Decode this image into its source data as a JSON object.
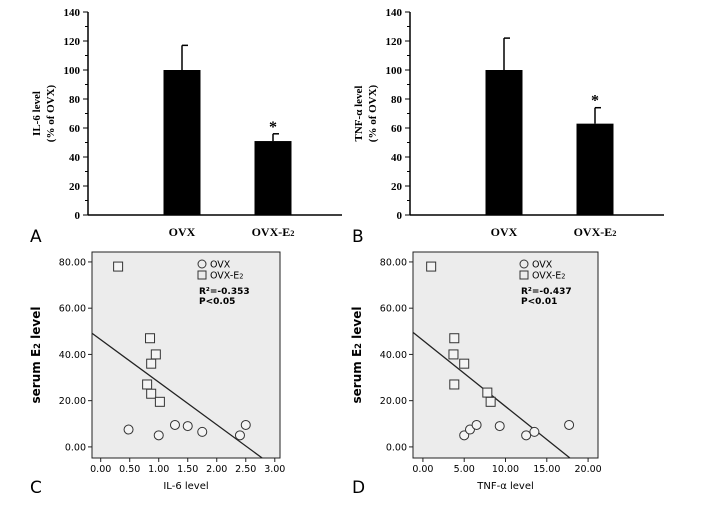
{
  "chart_data": [
    {
      "panel": "A",
      "type": "bar",
      "ylabel": [
        "IL-6 level",
        "(% of OVX)"
      ],
      "categories": [
        "OVX",
        "OVX-E2"
      ],
      "values": [
        100,
        51
      ],
      "errors": [
        17,
        5
      ],
      "annotations": [
        "",
        "*"
      ],
      "ylim": [
        0,
        140
      ],
      "yticks": [
        0,
        20,
        40,
        60,
        80,
        100,
        120,
        140
      ],
      "bar_color": "#000000"
    },
    {
      "panel": "B",
      "type": "bar",
      "ylabel": [
        "TNF-α level",
        "(% of OVX)"
      ],
      "categories": [
        "OVX",
        "OVX-E2"
      ],
      "values": [
        100,
        63
      ],
      "errors": [
        22,
        11
      ],
      "annotations": [
        "",
        "*"
      ],
      "ylim": [
        0,
        140
      ],
      "yticks": [
        0,
        20,
        40,
        60,
        80,
        100,
        120,
        140
      ],
      "bar_color": "#000000"
    },
    {
      "panel": "C",
      "type": "scatter",
      "xlabel": "IL-6 level",
      "ylabel": "serum E2 level",
      "xlim": [
        -0.15,
        3.09
      ],
      "ylim": [
        -4.8,
        84.3
      ],
      "xticks": [
        "0.00",
        "0.50",
        "1.00",
        "1.50",
        "2.00",
        "2.50",
        "3.00"
      ],
      "yticks": [
        "0.00",
        "20.00",
        "40.00",
        "60.00",
        "80.00"
      ],
      "series": [
        {
          "name": "OVX",
          "marker": "circle",
          "points": [
            [
              0.48,
              7.5
            ],
            [
              1.0,
              5
            ],
            [
              1.28,
              9.5
            ],
            [
              1.5,
              9
            ],
            [
              1.75,
              6.5
            ],
            [
              2.4,
              5
            ],
            [
              2.5,
              9.5
            ]
          ]
        },
        {
          "name": "OVX-E2",
          "marker": "square",
          "points": [
            [
              0.3,
              78
            ],
            [
              0.85,
              47
            ],
            [
              0.95,
              40
            ],
            [
              0.87,
              36
            ],
            [
              0.8,
              27
            ],
            [
              0.87,
              23
            ],
            [
              1.02,
              19.5
            ]
          ]
        }
      ],
      "fit_line": {
        "intercept": 46.4,
        "slope": -18.4
      },
      "stats": [
        "R²=-0.353",
        "P<0.05"
      ],
      "legend": "top-right",
      "background": "#ececec"
    },
    {
      "panel": "D",
      "type": "scatter",
      "xlabel": "TNF-α level",
      "ylabel": "serum E2 level",
      "xlim": [
        -1.2,
        21.2
      ],
      "ylim": [
        -4.8,
        84.3
      ],
      "xticks": [
        "0.00",
        "5.00",
        "10.00",
        "15.00",
        "20.00"
      ],
      "yticks": [
        "0.00",
        "20.00",
        "40.00",
        "60.00",
        "80.00"
      ],
      "series": [
        {
          "name": "OVX",
          "marker": "circle",
          "points": [
            [
              5,
              5
            ],
            [
              5.7,
              7.5
            ],
            [
              6.5,
              9.5
            ],
            [
              9.3,
              9
            ],
            [
              12.5,
              5
            ],
            [
              13.5,
              6.5
            ],
            [
              17.7,
              9.5
            ]
          ]
        },
        {
          "name": "OVX-E2",
          "marker": "square",
          "points": [
            [
              1,
              78
            ],
            [
              3.8,
              47
            ],
            [
              3.7,
              40
            ],
            [
              5,
              36
            ],
            [
              3.8,
              27
            ],
            [
              7.8,
              23.5
            ],
            [
              8.2,
              19.5
            ]
          ]
        }
      ],
      "fit_line": {
        "intercept": 46.1,
        "slope": -2.86
      },
      "stats": [
        "R²=-0.437",
        "P<0.01"
      ],
      "legend": "top-right",
      "background": "#ececec"
    }
  ]
}
